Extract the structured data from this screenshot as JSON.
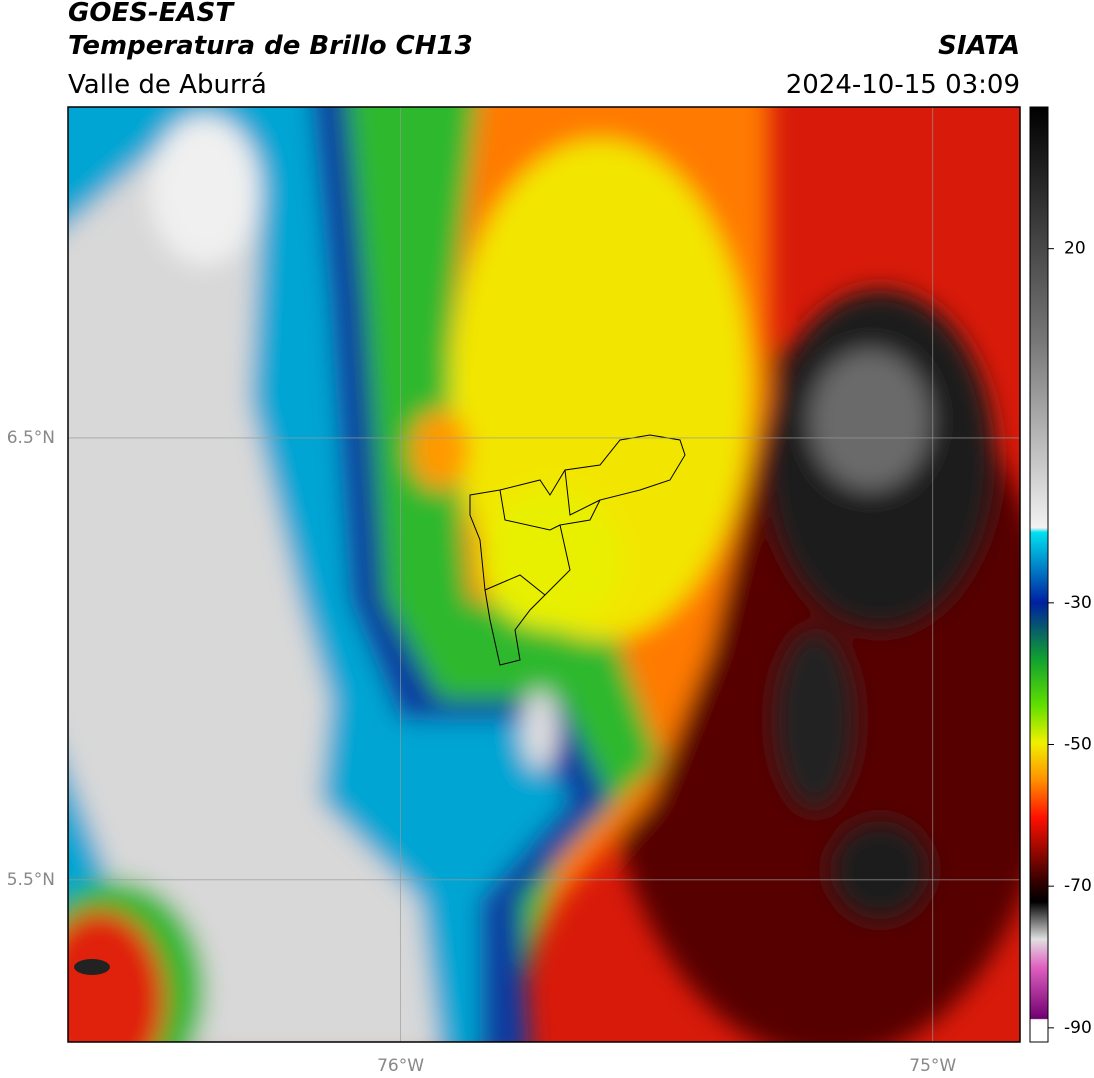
{
  "header": {
    "title": "GOES-EAST",
    "subtitle": "Temperatura de Brillo CH13",
    "region": "Valle de Aburrá",
    "source": "SIATA",
    "datetime": "2024-10-15 03:09"
  },
  "map": {
    "xlim": [
      -76.625,
      -74.836
    ],
    "ylim": [
      5.133,
      7.249
    ],
    "xticks": [
      {
        "value": -76,
        "label": "76°W"
      },
      {
        "value": -75,
        "label": "75°W"
      }
    ],
    "yticks": [
      {
        "value": 6.5,
        "label": "6.5°N"
      },
      {
        "value": 5.5,
        "label": "5.5°N"
      }
    ],
    "grid": true
  },
  "colorbar": {
    "lim": [
      -92,
      40
    ],
    "ticks": [
      20,
      -30,
      -50,
      -70,
      -90
    ]
  }
}
